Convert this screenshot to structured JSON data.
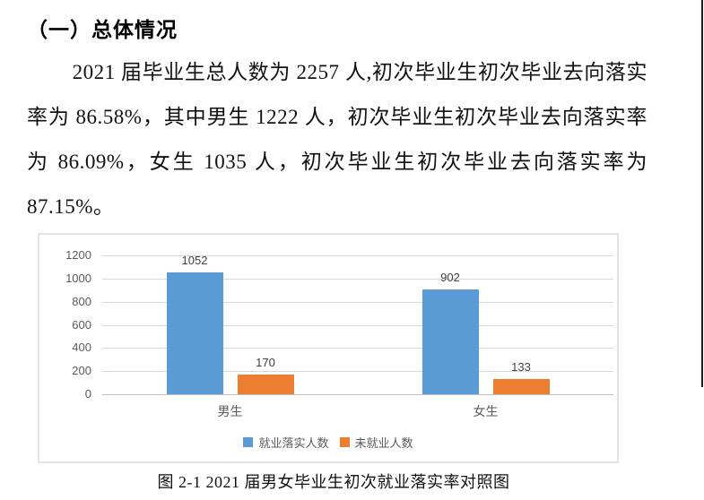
{
  "page": {
    "heading": "（一）总体情况",
    "paragraph": "2021 届毕业生总人数为 2257 人,初次毕业生初次毕业去向落实率为 86.58%，其中男生 1222 人，初次毕业生初次毕业去向落实率为 86.09%，女生 1035 人，初次毕业生初次毕业去向落实率为 87.15%。",
    "caption": "图 2-1 2021 届男女毕业生初次就业落实率对照图"
  },
  "chart_data": {
    "type": "bar",
    "title": "",
    "categories": [
      "男生",
      "女生"
    ],
    "series": [
      {
        "name": "就业落实人数",
        "color": "#5B9BD5",
        "values": [
          1052,
          902
        ]
      },
      {
        "name": "未就业人数",
        "color": "#ED7D31",
        "values": [
          170,
          133
        ]
      }
    ],
    "ylim": [
      0,
      1200
    ],
    "yticks": [
      0,
      200,
      400,
      600,
      800,
      1000,
      1200
    ],
    "grid": true,
    "legend_position": "bottom",
    "data_labels": true
  }
}
